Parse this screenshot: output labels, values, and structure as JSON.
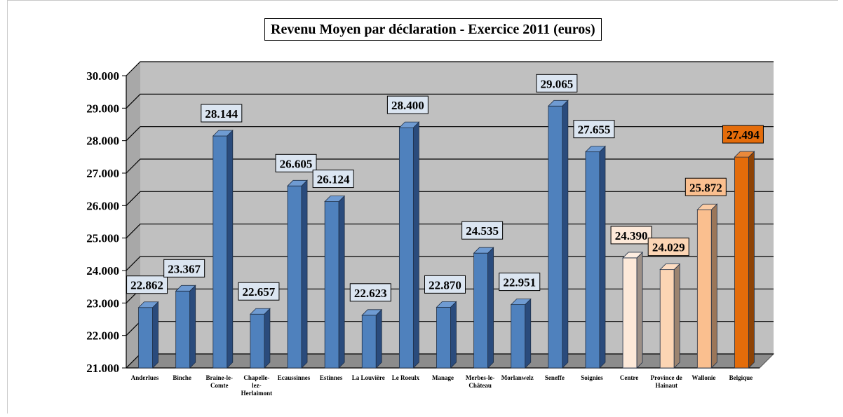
{
  "chart_data": {
    "type": "bar",
    "title": "Revenu Moyen par déclaration - Exercice 2011 (euros)",
    "xlabel": "",
    "ylabel": "",
    "ylim": [
      21000,
      30000
    ],
    "yticks": [
      "21.000",
      "22.000",
      "23.000",
      "24.000",
      "25.000",
      "26.000",
      "27.000",
      "28.000",
      "29.000",
      "30.000"
    ],
    "grid": true,
    "legend": "none",
    "categories": [
      [
        "Anderlues"
      ],
      [
        "Binche"
      ],
      [
        "Braine-le-",
        "Comte"
      ],
      [
        "Chapelle-",
        "lez-",
        "Herlaimont"
      ],
      [
        "Ecaussinnes"
      ],
      [
        "Estinnes"
      ],
      [
        "La Louvière"
      ],
      [
        "Le Roeulx"
      ],
      [
        "Manage"
      ],
      [
        "Merbes-le-",
        "Château"
      ],
      [
        "Morlanwelz"
      ],
      [
        "Seneffe"
      ],
      [
        "Soignies"
      ],
      [
        "Centre"
      ],
      [
        "Province de",
        "Hainaut"
      ],
      [
        "Wallonie"
      ],
      [
        "Belgique"
      ]
    ],
    "values": [
      22862,
      23367,
      28144,
      22657,
      26605,
      26124,
      22623,
      28400,
      22870,
      24535,
      22951,
      29065,
      27655,
      24390,
      24029,
      25872,
      27494
    ],
    "labels": [
      "22.862",
      "23.367",
      "28.144",
      "22.657",
      "26.605",
      "26.124",
      "22.623",
      "28.400",
      "22.870",
      "24.535",
      "22.951",
      "29.065",
      "27.655",
      "24.390",
      "24.029",
      "25.872",
      "27.494"
    ],
    "colors": {
      "default_front": "#4f81bd",
      "default_side": "#2a4b7c",
      "default_top": "#6f9bd2",
      "Centre": "#fde9d9",
      "Province de Hainaut": "#fcd5b4",
      "Wallonie": "#fabf8f",
      "Belgique": "#e46c0a",
      "label_default_bg": "#dbe5f1",
      "wall": "#c0c0c0",
      "floor": "#8c8c8c"
    }
  }
}
